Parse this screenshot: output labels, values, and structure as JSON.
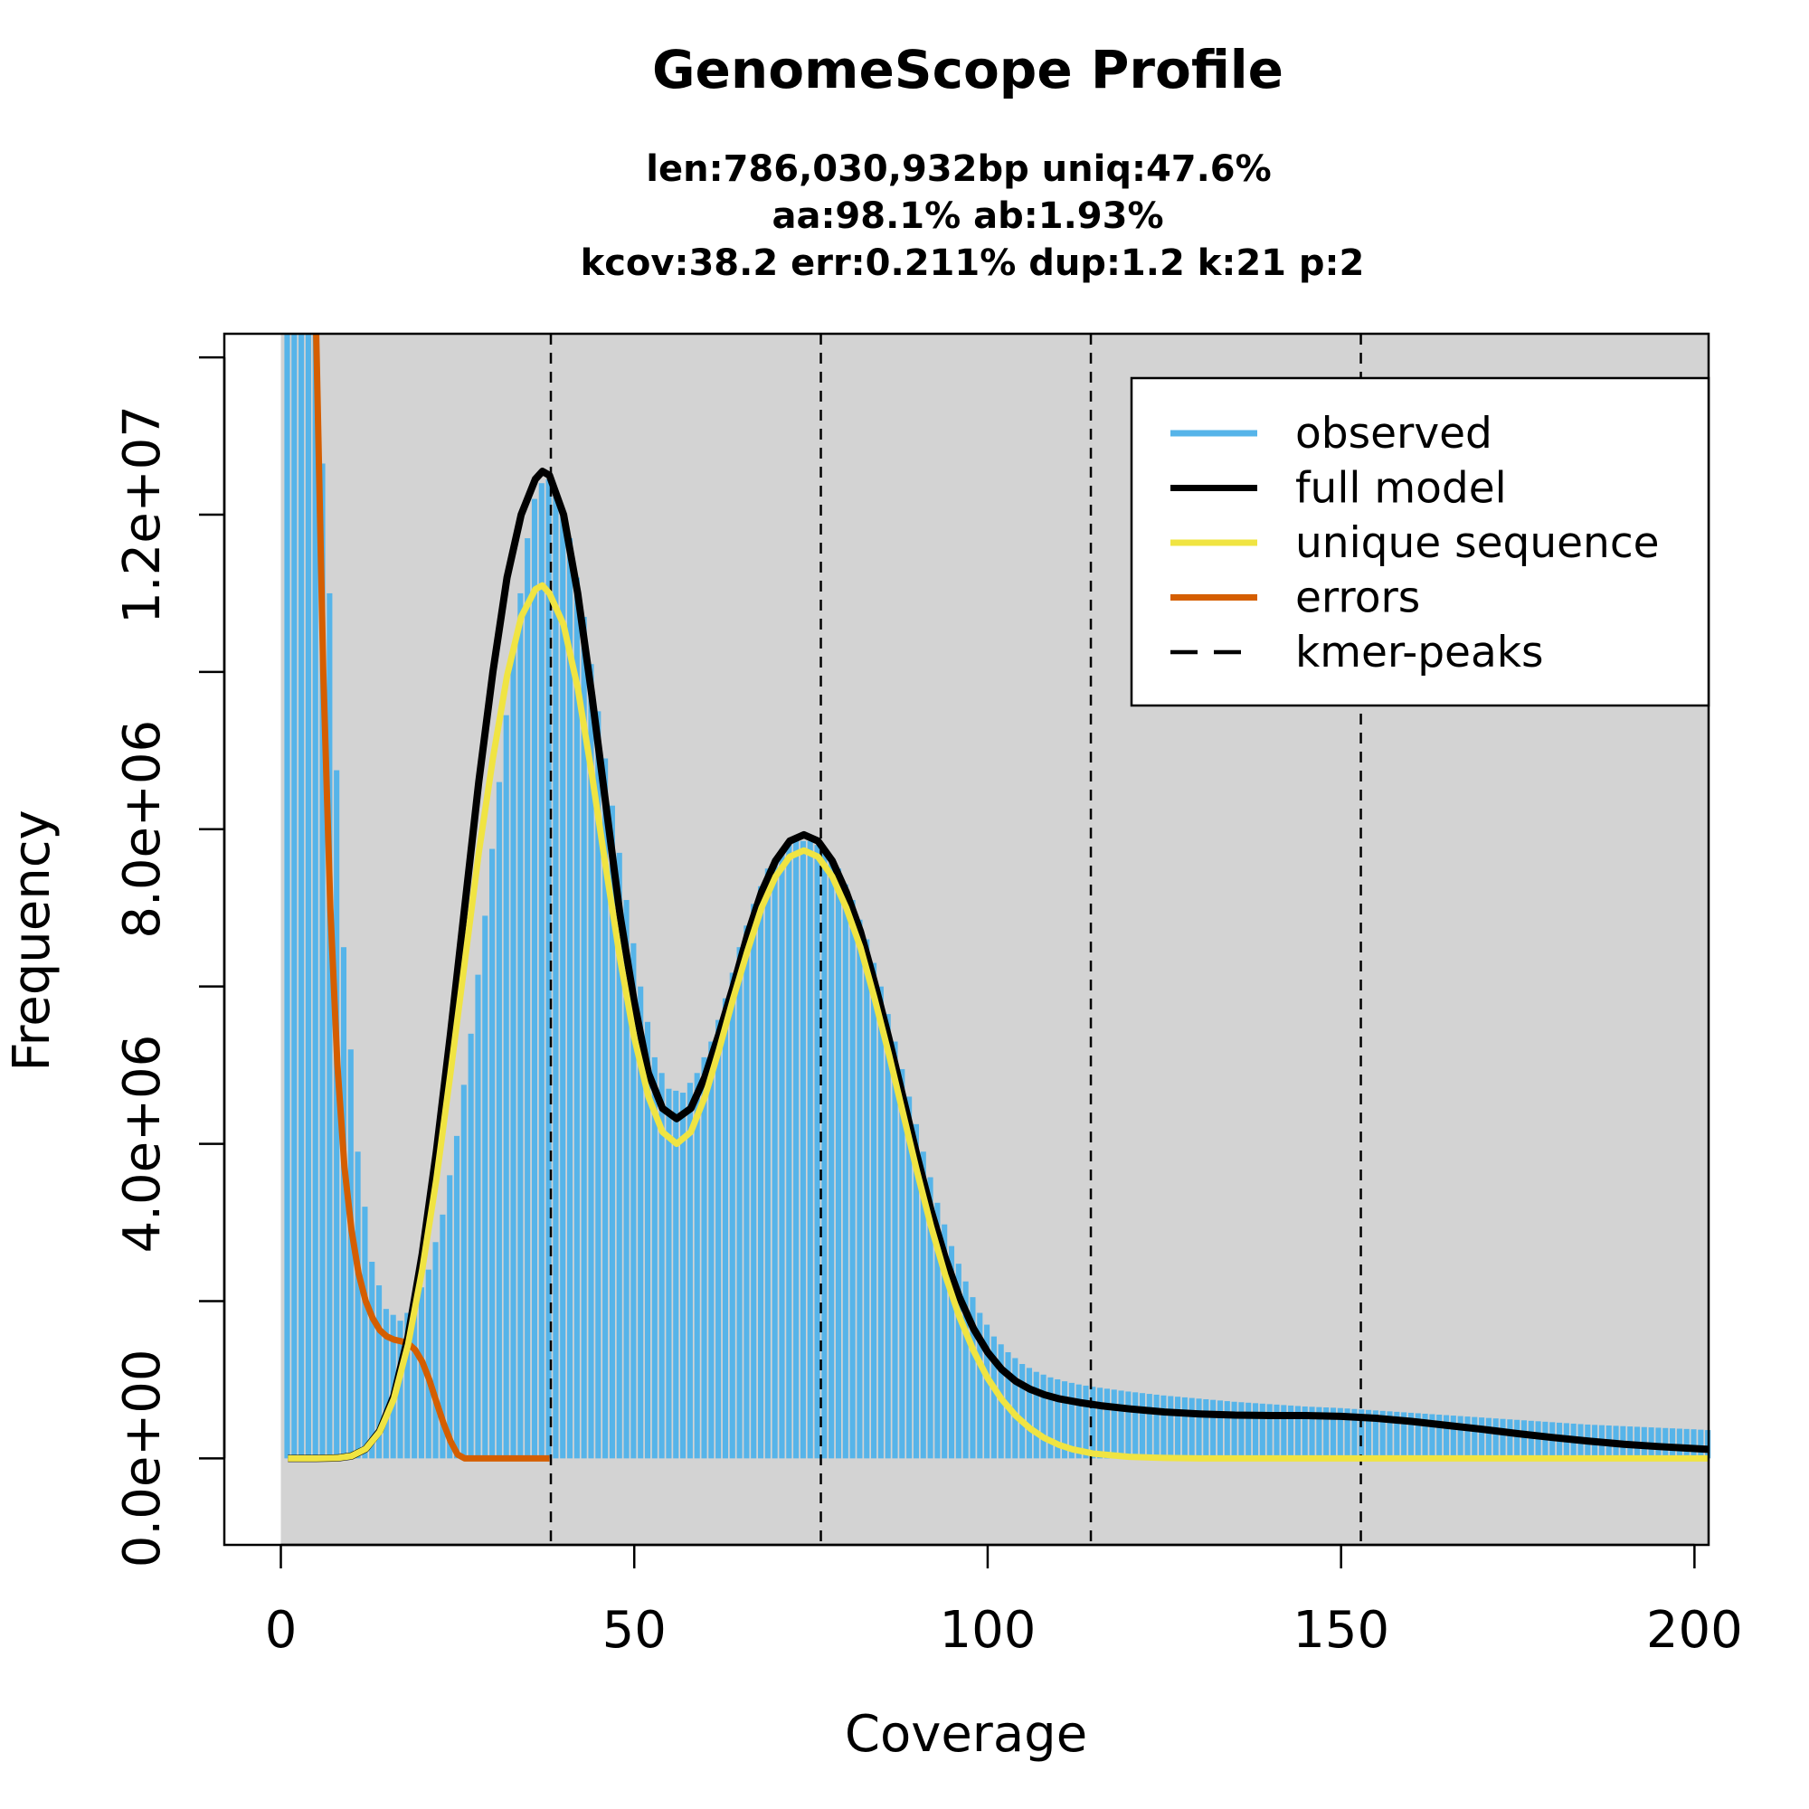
{
  "chart_data": {
    "type": "bar",
    "title": "GenomeScope Profile",
    "subtitle_lines": [
      "len:786,030,932bp uniq:47.6%",
      "aa:98.1% ab:1.93%",
      "kcov:38.2 err:0.211%  dup:1.2  k:21 p:2"
    ],
    "xlabel": "Coverage",
    "ylabel": "Frequency",
    "xlim": [
      -8,
      202
    ],
    "ylim": [
      -1100000,
      14300000
    ],
    "x_ticks": [
      0,
      50,
      100,
      150,
      200
    ],
    "x_tick_labels": [
      "0",
      "50",
      "100",
      "150",
      "200"
    ],
    "y_ticks": [
      0,
      2000000,
      4000000,
      6000000,
      8000000,
      10000000,
      12000000,
      14000000
    ],
    "y_tick_labels": [
      "0.0e+00",
      "",
      "4.0e+06",
      "",
      "8.0e+06",
      "",
      "1.2e+07",
      ""
    ],
    "plot_background": "#d3d3d3",
    "grid": false,
    "legend_position": "top-right",
    "legend": [
      {
        "label": "observed",
        "color": "#56B4E9",
        "style": "solid"
      },
      {
        "label": "full model",
        "color": "#000000",
        "style": "solid"
      },
      {
        "label": "unique sequence",
        "color": "#F0E442",
        "style": "solid"
      },
      {
        "label": "errors",
        "color": "#D55E00",
        "style": "solid"
      },
      {
        "label": "kmer-peaks",
        "color": "#000000",
        "style": "dashed"
      }
    ],
    "kmer_peaks": [
      38.2,
      76.4,
      114.6,
      152.8
    ],
    "observed": {
      "name": "observed",
      "color": "#56B4E9",
      "points": [
        [
          1,
          14300000
        ],
        [
          3,
          14300000
        ],
        [
          5,
          14300000
        ],
        [
          7,
          11000000
        ],
        [
          9,
          6500000
        ],
        [
          11,
          3900000
        ],
        [
          13,
          2500000
        ],
        [
          15,
          1900000
        ],
        [
          17,
          1750000
        ],
        [
          19,
          1950000
        ],
        [
          21,
          2400000
        ],
        [
          23,
          3100000
        ],
        [
          25,
          4100000
        ],
        [
          27,
          5400000
        ],
        [
          29,
          6900000
        ],
        [
          31,
          8600000
        ],
        [
          33,
          10300000
        ],
        [
          35,
          11700000
        ],
        [
          36,
          12200000
        ],
        [
          37,
          12400000
        ],
        [
          38,
          12450000
        ],
        [
          39,
          12300000
        ],
        [
          41,
          11700000
        ],
        [
          43,
          10700000
        ],
        [
          45,
          9500000
        ],
        [
          47,
          8300000
        ],
        [
          49,
          7100000
        ],
        [
          51,
          6000000
        ],
        [
          53,
          5100000
        ],
        [
          55,
          4700000
        ],
        [
          57,
          4650000
        ],
        [
          59,
          4900000
        ],
        [
          61,
          5300000
        ],
        [
          63,
          5850000
        ],
        [
          65,
          6500000
        ],
        [
          67,
          7050000
        ],
        [
          69,
          7500000
        ],
        [
          71,
          7750000
        ],
        [
          73,
          7850000
        ],
        [
          75,
          7850000
        ],
        [
          77,
          7750000
        ],
        [
          79,
          7500000
        ],
        [
          81,
          7100000
        ],
        [
          83,
          6600000
        ],
        [
          85,
          6000000
        ],
        [
          87,
          5300000
        ],
        [
          89,
          4600000
        ],
        [
          91,
          3900000
        ],
        [
          93,
          3250000
        ],
        [
          95,
          2700000
        ],
        [
          97,
          2250000
        ],
        [
          99,
          1850000
        ],
        [
          101,
          1550000
        ],
        [
          103,
          1350000
        ],
        [
          105,
          1200000
        ],
        [
          107,
          1100000
        ],
        [
          109,
          1030000
        ],
        [
          111,
          980000
        ],
        [
          113,
          940000
        ],
        [
          115,
          910000
        ],
        [
          120,
          850000
        ],
        [
          125,
          800000
        ],
        [
          130,
          760000
        ],
        [
          135,
          720000
        ],
        [
          140,
          690000
        ],
        [
          145,
          660000
        ],
        [
          150,
          640000
        ],
        [
          155,
          610000
        ],
        [
          160,
          580000
        ],
        [
          165,
          550000
        ],
        [
          170,
          520000
        ],
        [
          175,
          490000
        ],
        [
          180,
          460000
        ],
        [
          185,
          430000
        ],
        [
          190,
          410000
        ],
        [
          195,
          390000
        ],
        [
          200,
          370000
        ],
        [
          202,
          360000
        ]
      ]
    },
    "full_model": {
      "name": "full model",
      "color": "#000000",
      "points": [
        [
          1,
          0
        ],
        [
          5,
          0
        ],
        [
          8,
          5000
        ],
        [
          10,
          30000
        ],
        [
          12,
          120000
        ],
        [
          14,
          350000
        ],
        [
          16,
          800000
        ],
        [
          18,
          1550000
        ],
        [
          20,
          2600000
        ],
        [
          22,
          3900000
        ],
        [
          24,
          5400000
        ],
        [
          26,
          7000000
        ],
        [
          28,
          8600000
        ],
        [
          30,
          10000000
        ],
        [
          32,
          11200000
        ],
        [
          34,
          12000000
        ],
        [
          36,
          12450000
        ],
        [
          37,
          12550000
        ],
        [
          38,
          12500000
        ],
        [
          40,
          12000000
        ],
        [
          42,
          11000000
        ],
        [
          44,
          9700000
        ],
        [
          46,
          8300000
        ],
        [
          48,
          6900000
        ],
        [
          50,
          5800000
        ],
        [
          52,
          4900000
        ],
        [
          54,
          4450000
        ],
        [
          56,
          4320000
        ],
        [
          58,
          4450000
        ],
        [
          60,
          4850000
        ],
        [
          62,
          5400000
        ],
        [
          64,
          6000000
        ],
        [
          66,
          6650000
        ],
        [
          68,
          7200000
        ],
        [
          70,
          7600000
        ],
        [
          72,
          7850000
        ],
        [
          74,
          7930000
        ],
        [
          76,
          7850000
        ],
        [
          78,
          7600000
        ],
        [
          80,
          7200000
        ],
        [
          82,
          6700000
        ],
        [
          84,
          6050000
        ],
        [
          86,
          5350000
        ],
        [
          88,
          4600000
        ],
        [
          90,
          3850000
        ],
        [
          92,
          3150000
        ],
        [
          94,
          2550000
        ],
        [
          96,
          2050000
        ],
        [
          98,
          1650000
        ],
        [
          100,
          1350000
        ],
        [
          102,
          1130000
        ],
        [
          104,
          980000
        ],
        [
          106,
          880000
        ],
        [
          108,
          810000
        ],
        [
          110,
          760000
        ],
        [
          113,
          710000
        ],
        [
          116,
          670000
        ],
        [
          120,
          630000
        ],
        [
          125,
          590000
        ],
        [
          130,
          565000
        ],
        [
          135,
          550000
        ],
        [
          140,
          545000
        ],
        [
          145,
          545000
        ],
        [
          150,
          535000
        ],
        [
          155,
          510000
        ],
        [
          160,
          470000
        ],
        [
          165,
          420000
        ],
        [
          170,
          370000
        ],
        [
          175,
          315000
        ],
        [
          180,
          265000
        ],
        [
          185,
          220000
        ],
        [
          190,
          180000
        ],
        [
          195,
          150000
        ],
        [
          200,
          125000
        ],
        [
          202,
          115000
        ]
      ]
    },
    "unique_sequence": {
      "name": "unique sequence",
      "color": "#F0E442",
      "points": [
        [
          1,
          0
        ],
        [
          5,
          0
        ],
        [
          8,
          5000
        ],
        [
          10,
          30000
        ],
        [
          12,
          120000
        ],
        [
          14,
          340000
        ],
        [
          16,
          760000
        ],
        [
          18,
          1450000
        ],
        [
          20,
          2400000
        ],
        [
          22,
          3550000
        ],
        [
          24,
          4900000
        ],
        [
          26,
          6300000
        ],
        [
          28,
          7700000
        ],
        [
          30,
          8900000
        ],
        [
          32,
          9950000
        ],
        [
          34,
          10700000
        ],
        [
          36,
          11050000
        ],
        [
          37,
          11100000
        ],
        [
          38,
          11000000
        ],
        [
          40,
          10600000
        ],
        [
          42,
          9800000
        ],
        [
          44,
          8700000
        ],
        [
          46,
          7500000
        ],
        [
          48,
          6350000
        ],
        [
          50,
          5350000
        ],
        [
          52,
          4600000
        ],
        [
          54,
          4150000
        ],
        [
          56,
          4000000
        ],
        [
          58,
          4150000
        ],
        [
          60,
          4600000
        ],
        [
          62,
          5200000
        ],
        [
          64,
          5850000
        ],
        [
          66,
          6450000
        ],
        [
          68,
          7000000
        ],
        [
          70,
          7400000
        ],
        [
          72,
          7650000
        ],
        [
          74,
          7730000
        ],
        [
          76,
          7650000
        ],
        [
          78,
          7400000
        ],
        [
          80,
          7000000
        ],
        [
          82,
          6500000
        ],
        [
          84,
          5850000
        ],
        [
          86,
          5150000
        ],
        [
          88,
          4400000
        ],
        [
          90,
          3650000
        ],
        [
          92,
          2950000
        ],
        [
          94,
          2330000
        ],
        [
          96,
          1800000
        ],
        [
          98,
          1370000
        ],
        [
          100,
          1020000
        ],
        [
          102,
          750000
        ],
        [
          104,
          540000
        ],
        [
          106,
          380000
        ],
        [
          108,
          260000
        ],
        [
          110,
          175000
        ],
        [
          112,
          115000
        ],
        [
          115,
          60000
        ],
        [
          120,
          20000
        ],
        [
          125,
          5000
        ],
        [
          130,
          0
        ],
        [
          202,
          0
        ]
      ]
    },
    "errors": {
      "name": "errors",
      "color": "#D55E00",
      "points": [
        [
          5,
          14300000
        ],
        [
          6,
          10000000
        ],
        [
          7,
          7000000
        ],
        [
          8,
          5000000
        ],
        [
          9,
          3700000
        ],
        [
          10,
          2900000
        ],
        [
          11,
          2350000
        ],
        [
          12,
          2000000
        ],
        [
          13,
          1780000
        ],
        [
          14,
          1630000
        ],
        [
          15,
          1550000
        ],
        [
          16,
          1510000
        ],
        [
          17,
          1490000
        ],
        [
          18,
          1460000
        ],
        [
          19,
          1380000
        ],
        [
          20,
          1230000
        ],
        [
          21,
          1000000
        ],
        [
          22,
          720000
        ],
        [
          23,
          450000
        ],
        [
          24,
          220000
        ],
        [
          25,
          50000
        ],
        [
          26,
          0
        ],
        [
          38,
          0
        ]
      ]
    }
  }
}
